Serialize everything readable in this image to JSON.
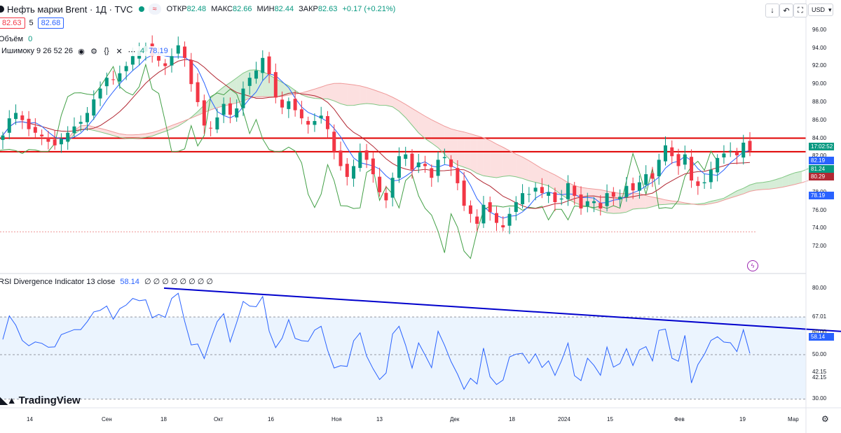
{
  "header": {
    "symbol": "Нефть марки Brent · 1Д · TVC",
    "pill_text": "≈",
    "open_label": "ОТКР",
    "open": "82.48",
    "high_label": "МАКС",
    "high": "82.66",
    "low_label": "МИН",
    "low": "82.44",
    "close_label": "ЗАКР",
    "close": "82.63",
    "change": "+0.17 (+0.21%)",
    "sell_price": "82.63",
    "spread": "5",
    "buy_price": "82.68"
  },
  "legends": {
    "volume": "Объём",
    "volume_value": "0",
    "ichimoku": "Ишимоку 9 26 52 26",
    "ichimoku_value_prefix": "4",
    "ichimoku_value": "78.19",
    "rsi": "RSI Divergence Indicator 13 close",
    "rsi_value": "58.14",
    "rsi_extra": "∅ ∅ ∅ ∅ ∅ ∅ ∅ ∅"
  },
  "toolbar": {
    "currency": "USD",
    "down_icon": "arrow-down-icon",
    "undo_icon": "undo-icon",
    "fullscreen_icon": "fullscreen-icon",
    "settings_icon": "gear-icon"
  },
  "price_axis": {
    "ticks": [
      "96.00",
      "94.00",
      "92.00",
      "90.00",
      "88.00",
      "86.00",
      "84.00",
      "82.00",
      "80.00",
      "78.00",
      "76.00",
      "74.00",
      "72.00"
    ],
    "tags": [
      {
        "text": "17:02:52",
        "color": "#089981"
      },
      {
        "text": "82.19",
        "color": "#2962ff"
      },
      {
        "text": "81.24",
        "color": "#089981"
      },
      {
        "text": "80.29",
        "color": "#b22833"
      },
      {
        "text": "78.19",
        "color": "#2962ff"
      }
    ]
  },
  "rsi_axis": {
    "ticks": [
      "80.00",
      "67.01",
      "60.00",
      "50.00",
      "42.15",
      "42.15",
      "30.00"
    ],
    "tag": "58.14"
  },
  "time_axis": {
    "labels": [
      "14",
      "Сен",
      "18",
      "Окт",
      "16",
      "Ноя",
      "13",
      "Дек",
      "18",
      "2024",
      "15",
      "Фев",
      "19",
      "Мар"
    ]
  },
  "branding": {
    "name": "TradingView"
  },
  "colors": {
    "up": "#089981",
    "down": "#f23645",
    "tenkan": "#2962ff",
    "kijun": "#b22833",
    "chikou": "#43a047",
    "cloud_up": "#a5d6a7",
    "cloud_down": "#f8bbbb",
    "resistance": "#e00000",
    "rsi_line": "#2962ff",
    "trend": "#0000cc"
  },
  "chart_data": {
    "type": "candlestick",
    "y_range": [
      71,
      97
    ],
    "horizontal_levels": [
      84.0,
      82.5
    ],
    "closes": [
      84.3,
      86.2,
      86.8,
      86.0,
      85.0,
      84.6,
      84.2,
      83.6,
      83.2,
      83.9,
      84.6,
      85.3,
      85.8,
      86.8,
      88.3,
      89.5,
      90.7,
      90.5,
      91.2,
      92.0,
      93.1,
      93.7,
      94.2,
      93.1,
      92.6,
      92.0,
      93.1,
      94.3,
      92.9,
      90.0,
      88.0,
      85.4,
      85.1,
      86.3,
      87.8,
      86.6,
      87.3,
      89.5,
      90.7,
      91.5,
      92.9,
      91.1,
      88.5,
      87.4,
      88.1,
      87.1,
      86.2,
      85.5,
      85.9,
      86.5,
      85.0,
      82.5,
      80.9,
      79.7,
      80.9,
      82.4,
      81.6,
      80.0,
      78.0,
      77.1,
      79.6,
      82.0,
      82.2,
      80.5,
      81.3,
      80.9,
      79.6,
      81.6,
      81.9,
      80.8,
      79.0,
      76.5,
      75.6,
      74.5,
      76.6,
      75.8,
      74.6,
      74.1,
      75.6,
      76.9,
      77.9,
      77.8,
      78.5,
      77.9,
      78.0,
      76.9,
      77.3,
      79.0,
      77.6,
      76.2,
      77.0,
      77.0,
      76.2,
      77.9,
      77.5,
      77.5,
      78.7,
      78.2,
      79.1,
      80.0,
      79.5,
      81.6,
      83.2,
      82.0,
      80.9,
      82.2,
      79.3,
      78.7,
      79.1,
      80.5,
      81.8,
      82.3,
      82.6,
      82.1,
      83.5,
      82.6
    ]
  }
}
